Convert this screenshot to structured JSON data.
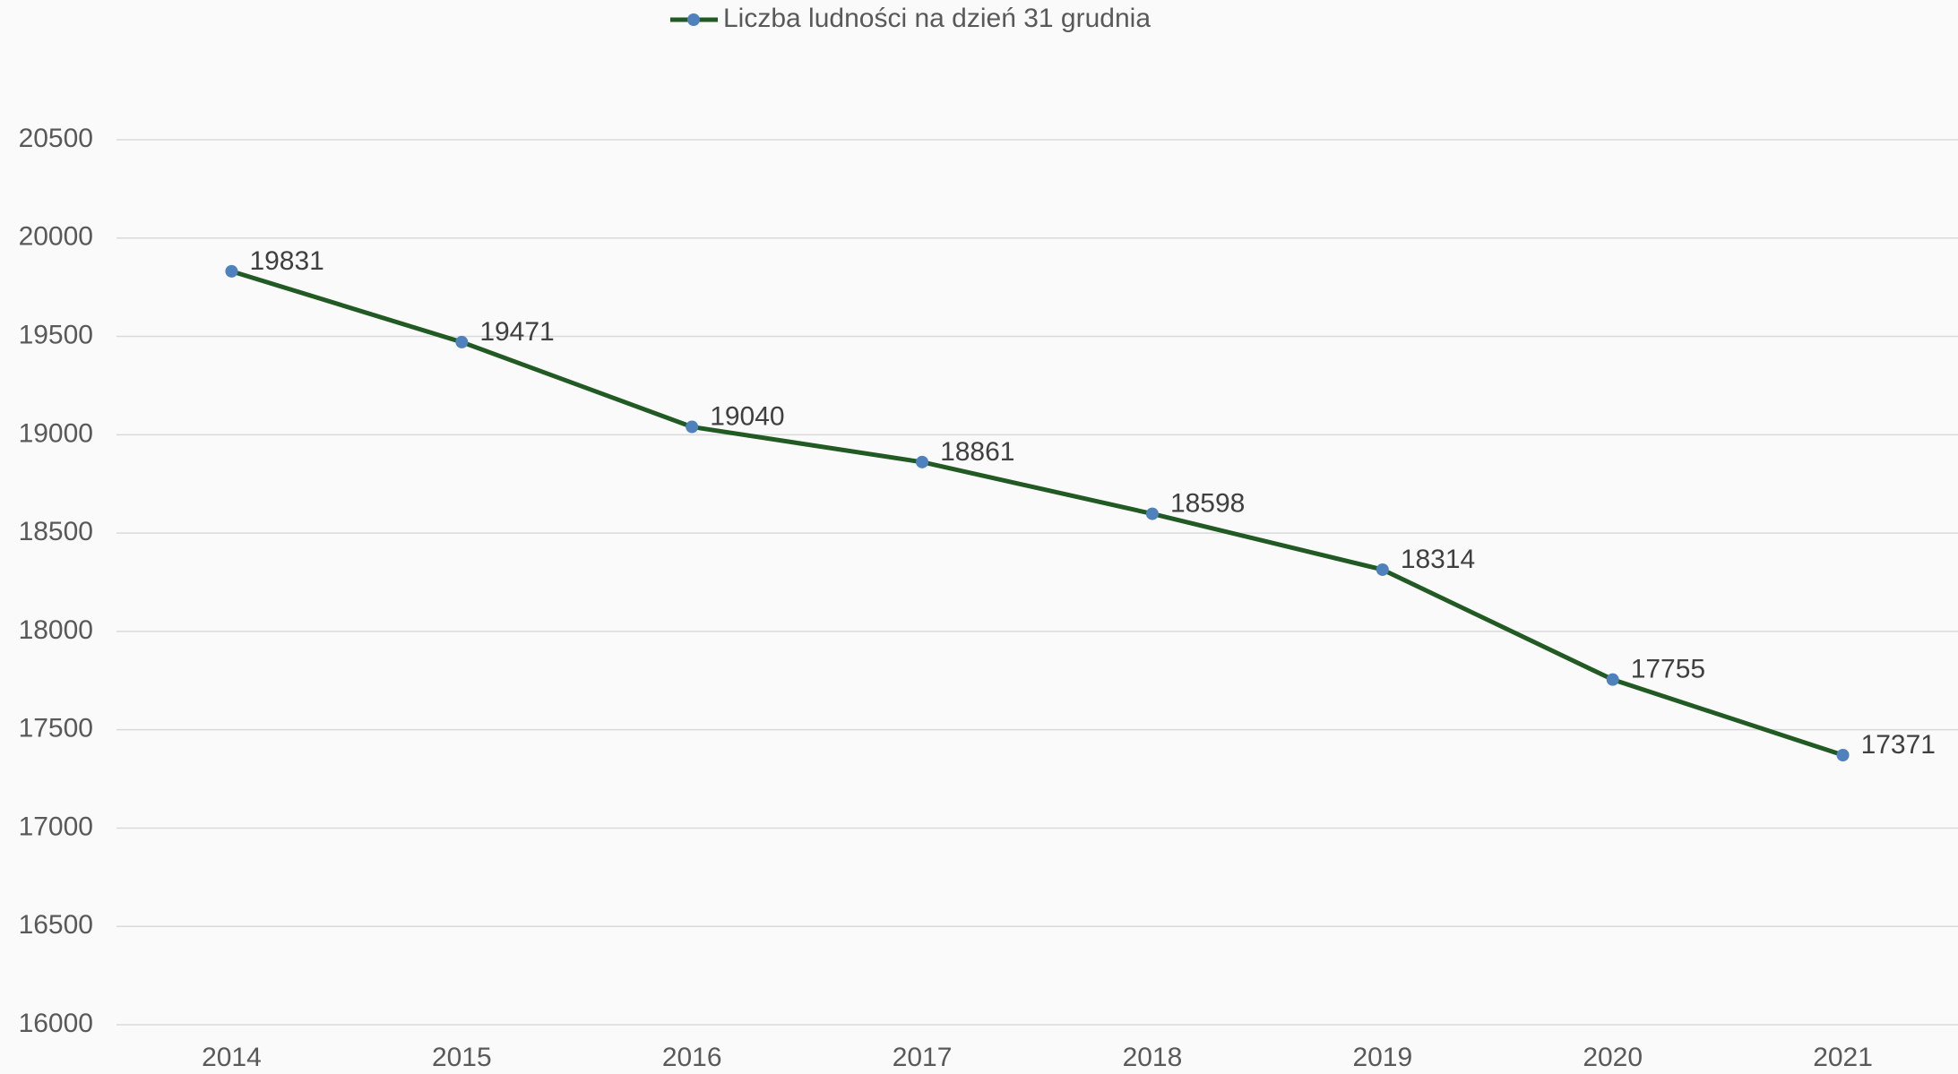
{
  "chart_data": {
    "type": "line",
    "categories": [
      "2014",
      "2015",
      "2016",
      "2017",
      "2018",
      "2019",
      "2020",
      "2021"
    ],
    "series": [
      {
        "name": "Liczba ludności na dzień 31 grudnia",
        "color": "#215a22",
        "marker_color": "#4f81bd",
        "values": [
          19831,
          19471,
          19040,
          18861,
          18598,
          18314,
          17755,
          17371
        ]
      }
    ],
    "ylim": [
      16000,
      20500
    ],
    "yticks": [
      16000,
      16500,
      17000,
      17500,
      18000,
      18500,
      19000,
      19500,
      20000,
      20500
    ],
    "grid": true,
    "legend": "top",
    "data_labels": true
  }
}
